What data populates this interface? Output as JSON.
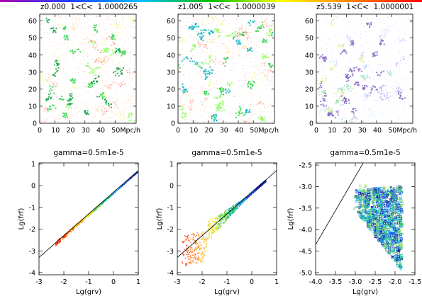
{
  "top_bar_colors": [
    "#b000b0",
    "#2040ff",
    "#00c0ff",
    "#00c000",
    "#ffff00",
    "#ff8000",
    "#ff0000"
  ],
  "panels_top": [
    {
      "title": "z0.000  1<C<  1.0000265",
      "palette": [
        "#ff8c70",
        "#ff6a4a",
        "#ffd080",
        "#e8ff70",
        "#90ff60",
        "#20d040",
        "#00a040"
      ]
    },
    {
      "title": "z1.005  1<C<  1.0000039",
      "palette": [
        "#ff8c70",
        "#ff6a4a",
        "#ffd080",
        "#e8ff70",
        "#90ff60",
        "#20d040",
        "#00b0c0"
      ]
    },
    {
      "title": "z5.539  1<C<  1.0000001",
      "palette": [
        "#c0e8ff",
        "#a0c8ff",
        "#c0a0f0",
        "#9070e0",
        "#a0e0c0",
        "#e0f0a0",
        "#8060c0"
      ]
    }
  ],
  "top_x_ticks": [
    "0",
    "10",
    "20",
    "30",
    "40",
    "50Mpc/h"
  ],
  "top_y_ticks": [
    "0",
    "10",
    "20",
    "30",
    "40",
    "50",
    "60"
  ],
  "panels_bottom": [
    {
      "title": "gamma=0.5m1e-5",
      "xlabel": "Lg(grv)",
      "ylabel": "Lg(frf)",
      "x_ticks": [
        "-3",
        "-2",
        "-1",
        "0",
        "1"
      ],
      "y_ticks": [
        "-4",
        "-3",
        "-2",
        "-1",
        "0",
        "1"
      ]
    },
    {
      "title": "gamma=0.5m1e-5",
      "xlabel": "Lg(grv)",
      "ylabel": "Lg(frf)",
      "x_ticks": [
        "-3",
        "-2",
        "-1",
        "0",
        "1"
      ],
      "y_ticks": [
        "-4",
        "-3",
        "-2",
        "-1",
        "0",
        "1"
      ]
    },
    {
      "title": "gamma=0.5m1e-5",
      "xlabel": "Lg(grv)",
      "ylabel": "Lg(frf)",
      "x_ticks": [
        "-4.0",
        "-3.5",
        "-3.0",
        "-2.5",
        "-2.0",
        "-1.5"
      ],
      "y_ticks": [
        "-5.0",
        "-4.5",
        "-4.0",
        "-3.5",
        "-3.0",
        "-2.5"
      ]
    }
  ],
  "chart_data": [
    {
      "type": "scatter",
      "title": "z0.000  1<C<  1.0000265",
      "xlabel": "",
      "ylabel": "",
      "xlim": [
        0,
        64
      ],
      "ylim": [
        0,
        64
      ],
      "x_unit": "Mpc/h"
    },
    {
      "type": "scatter",
      "title": "z1.005  1<C<  1.0000039",
      "xlabel": "",
      "ylabel": "",
      "xlim": [
        0,
        64
      ],
      "ylim": [
        0,
        64
      ],
      "x_unit": "Mpc/h"
    },
    {
      "type": "scatter",
      "title": "z5.539  1<C<  1.0000001",
      "xlabel": "",
      "ylabel": "",
      "xlim": [
        0,
        64
      ],
      "ylim": [
        0,
        64
      ],
      "x_unit": "Mpc/h"
    },
    {
      "type": "scatter",
      "title": "gamma=0.5m1e-5",
      "xlabel": "Lg(grv)",
      "ylabel": "Lg(frf)",
      "xlim": [
        -3,
        1
      ],
      "ylim": [
        -4.1,
        1.05
      ],
      "reference_line": {
        "x": [
          -3,
          1
        ],
        "y": [
          -3.3,
          0.7
        ]
      },
      "points": [
        [
          -2.4,
          -2.7
        ],
        [
          -2.2,
          -2.5
        ],
        [
          -2.0,
          -2.3
        ],
        [
          -1.8,
          -2.1
        ],
        [
          -1.5,
          -1.8
        ],
        [
          -1.2,
          -1.5
        ],
        [
          -1.0,
          -1.3
        ],
        [
          -0.6,
          -0.9
        ],
        [
          -0.3,
          -0.6
        ],
        [
          0.0,
          -0.3
        ],
        [
          0.3,
          0.0
        ],
        [
          0.6,
          0.3
        ],
        [
          0.9,
          0.6
        ]
      ]
    },
    {
      "type": "scatter",
      "title": "gamma=0.5m1e-5",
      "xlabel": "Lg(grv)",
      "ylabel": "Lg(frf)",
      "xlim": [
        -3,
        1
      ],
      "ylim": [
        -4.1,
        1.05
      ],
      "reference_line": {
        "x": [
          -3,
          1
        ],
        "y": [
          -3.3,
          0.7
        ]
      },
      "points": [
        [
          -2.6,
          -2.8
        ],
        [
          -2.4,
          -2.9
        ],
        [
          -2.2,
          -2.6
        ],
        [
          -2.0,
          -2.4
        ],
        [
          -1.8,
          -2.2
        ],
        [
          -1.5,
          -1.9
        ],
        [
          -1.2,
          -1.5
        ],
        [
          -0.8,
          -1.1
        ],
        [
          -0.4,
          -0.7
        ],
        [
          0.0,
          -0.3
        ],
        [
          0.3,
          0.0
        ]
      ]
    },
    {
      "type": "scatter",
      "title": "gamma=0.5m1e-5",
      "xlabel": "Lg(grv)",
      "ylabel": "Lg(frf)",
      "xlim": [
        -4.0,
        -1.5
      ],
      "ylim": [
        -5.05,
        -2.45
      ],
      "reference_line": {
        "x": [
          -4.0,
          -2.8
        ],
        "y": [
          -4.35,
          -2.45
        ]
      },
      "points": [
        [
          -3.0,
          -3.4
        ],
        [
          -2.8,
          -3.2
        ],
        [
          -2.6,
          -3.1
        ],
        [
          -2.4,
          -3.0
        ],
        [
          -2.2,
          -3.0
        ],
        [
          -2.0,
          -3.0
        ],
        [
          -2.0,
          -3.5
        ],
        [
          -2.2,
          -3.8
        ],
        [
          -2.5,
          -3.9
        ],
        [
          -2.7,
          -3.7
        ],
        [
          -3.0,
          -3.8
        ],
        [
          -2.2,
          -4.3
        ]
      ]
    }
  ]
}
